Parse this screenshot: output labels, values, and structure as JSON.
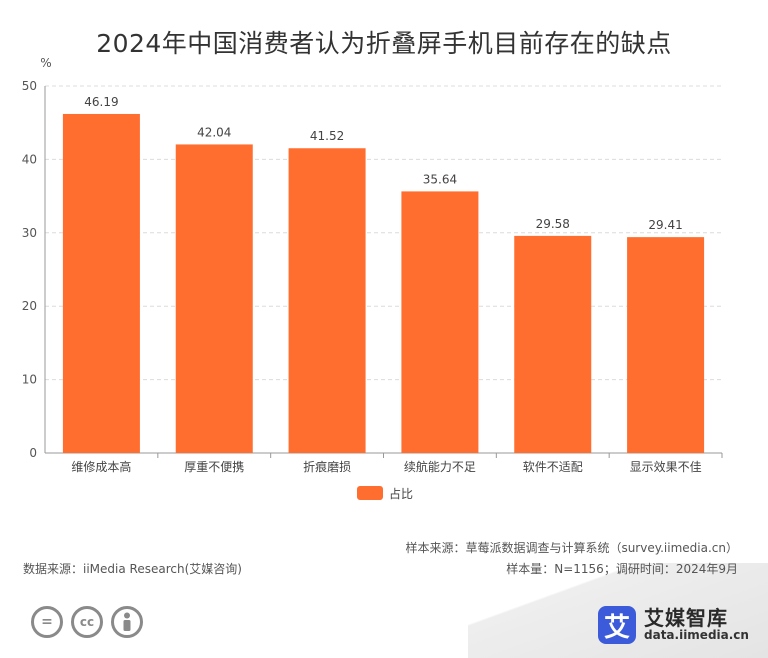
{
  "title": "2024年中国消费者认为折叠屏手机目前存在的缺点",
  "chart_data": {
    "type": "bar",
    "ylabel": "%",
    "ylim": [
      0,
      50
    ],
    "yticks": [
      0,
      10,
      20,
      30,
      40,
      50
    ],
    "categories": [
      "维修成本高",
      "厚重不便携",
      "折痕磨损",
      "续航能力不足",
      "软件不适配",
      "显示效果不佳"
    ],
    "series": [
      {
        "name": "占比",
        "values": [
          46.19,
          42.04,
          41.52,
          35.64,
          29.58,
          29.41
        ],
        "color": "#ff6e2f"
      }
    ],
    "grid": true,
    "legend": "bottom-center"
  },
  "sources": {
    "sample_source": "样本来源：草莓派数据调查与计算系统（survey.iimedia.cn）",
    "data_source": "数据来源：iiMedia Research(艾媒咨询)",
    "sample_info": "样本量：N=1156；调研时间：2024年9月"
  },
  "brand": {
    "logo_char": "艾",
    "name": "艾媒智库",
    "url": "data.iimedia.cn",
    "color": "#3b5bdb"
  },
  "license_icons": [
    "equals-icon",
    "cc-icon",
    "person-icon"
  ]
}
